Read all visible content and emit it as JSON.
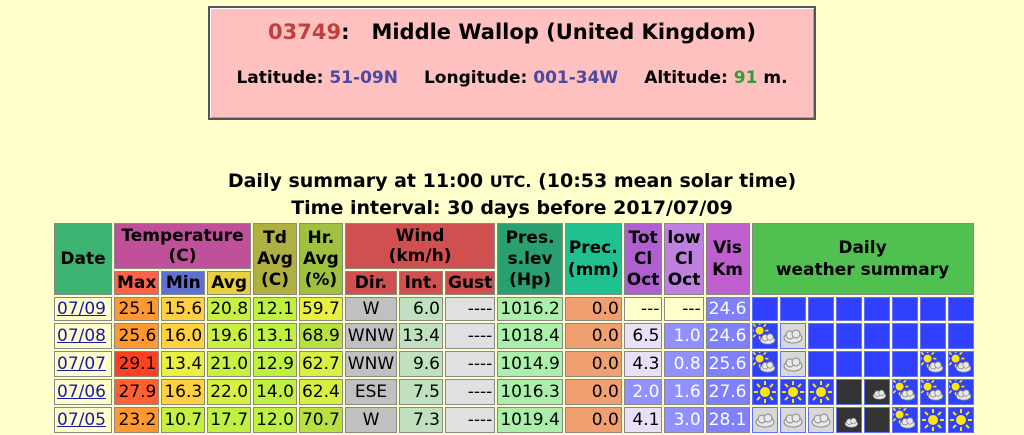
{
  "station": {
    "code": "03749",
    "name": "Middle Wallop (United Kingdom)",
    "lat_label": "Latitude:",
    "lat": "51-09N",
    "lon_label": "Longitude:",
    "lon": "001-34W",
    "alt_label": "Altitude:",
    "alt": "91",
    "alt_unit": "m."
  },
  "summary": {
    "line1_a": "Daily summary at 11:00",
    "line1_utc": "UTC.",
    "line1_b": "(10:53 mean solar time)",
    "line2": "Time interval: 30 days before 2017/07/09"
  },
  "headers": {
    "date": "Date",
    "temperature": "Temperature",
    "temperature_unit": "(C)",
    "max": "Max",
    "min": "Min",
    "avg": "Avg",
    "td_avg": "Td",
    "td_avg2": "Avg",
    "td_unit": "(C)",
    "hr": "Hr.",
    "hr2": "Avg",
    "hr_unit": "(%)",
    "wind": "Wind",
    "wind_unit": "(km/h)",
    "dir": "Dir.",
    "int": "Int.",
    "gust": "Gust",
    "pres": "Pres.",
    "pres2": "s.lev",
    "pres_unit": "(Hp)",
    "prec": "Prec.",
    "prec_unit": "(mm)",
    "totcl": "Tot",
    "totcl2": "Cl",
    "totcl3": "Oct",
    "lowcl": "low",
    "lowcl2": "Cl",
    "lowcl3": "Oct",
    "vis": "Vis",
    "vis2": "Km",
    "daily": "Daily",
    "daily2": "weather summary"
  },
  "rows": [
    {
      "date": "07/09",
      "max": "25.1",
      "min": "15.6",
      "avg": "20.8",
      "td": "12.1",
      "hr": "59.7",
      "dir": "W",
      "int": "6.0",
      "gust": "----",
      "pres": "1016.2",
      "prec": "0.0",
      "totcl": "---",
      "lowcl": "---",
      "vis": "24.6",
      "colors": {
        "max": "#ff9830",
        "min": "#ffd040",
        "avg": "#c8f040",
        "td": "#c0f040",
        "hr": "#e8f040",
        "totcl": "#ffffcc",
        "lowcl": "#ffffcc"
      },
      "icons": [
        "blank",
        "blank",
        "blank",
        "blank",
        "blank",
        "blank",
        "blank",
        "blank"
      ]
    },
    {
      "date": "07/08",
      "max": "25.6",
      "min": "16.0",
      "avg": "19.6",
      "td": "13.1",
      "hr": "68.9",
      "dir": "WNW",
      "int": "13.4",
      "gust": "----",
      "pres": "1018.4",
      "prec": "0.0",
      "totcl": "6.5",
      "lowcl": "1.0",
      "vis": "24.6",
      "colors": {
        "max": "#ff9830",
        "min": "#ffd040",
        "avg": "#c8f040",
        "td": "#c0f040",
        "hr": "#b8e040",
        "totcl": "#e8e0f8",
        "lowcl": "#9090ff"
      },
      "icons": [
        "sun-cloud",
        "cloud",
        "blank",
        "blank",
        "blank",
        "blank",
        "blank",
        "blank"
      ]
    },
    {
      "date": "07/07",
      "max": "29.1",
      "min": "13.4",
      "avg": "21.0",
      "td": "12.9",
      "hr": "62.7",
      "dir": "WNW",
      "int": "9.6",
      "gust": "----",
      "pres": "1014.9",
      "prec": "0.0",
      "totcl": "4.3",
      "lowcl": "0.8",
      "vis": "25.6",
      "colors": {
        "max": "#ff4020",
        "min": "#e8f040",
        "avg": "#c8f040",
        "td": "#c0f040",
        "hr": "#d8f040",
        "totcl": "#e8e0f8",
        "lowcl": "#9090ff"
      },
      "icons": [
        "sun-cloud",
        "cloud",
        "blank",
        "blank",
        "blank",
        "blank",
        "sun-cloud",
        "sun-cloud"
      ]
    },
    {
      "date": "07/06",
      "max": "27.9",
      "min": "16.3",
      "avg": "22.0",
      "td": "14.0",
      "hr": "62.4",
      "dir": "ESE",
      "int": "7.5",
      "gust": "----",
      "pres": "1016.3",
      "prec": "0.0",
      "totcl": "2.0",
      "lowcl": "1.6",
      "vis": "27.6",
      "colors": {
        "max": "#ff6030",
        "min": "#ffd040",
        "avg": "#d8f040",
        "td": "#c0f040",
        "hr": "#d8f040",
        "totcl": "#9090ff",
        "lowcl": "#9090ff"
      },
      "icons": [
        "sun",
        "sun",
        "sun",
        "moon",
        "moon-cloud",
        "sun-cloud",
        "sun-cloud",
        "sun-cloud"
      ]
    },
    {
      "date": "07/05",
      "max": "23.2",
      "min": "10.7",
      "avg": "17.7",
      "td": "12.0",
      "hr": "70.7",
      "dir": "W",
      "int": "7.3",
      "gust": "----",
      "pres": "1019.4",
      "prec": "0.0",
      "totcl": "4.1",
      "lowcl": "3.0",
      "vis": "28.1",
      "colors": {
        "max": "#ff9830",
        "min": "#c8f040",
        "avg": "#c0f040",
        "td": "#c0f040",
        "hr": "#b8e040",
        "totcl": "#e8e0f8",
        "lowcl": "#9090ff"
      },
      "icons": [
        "cloud",
        "cloud",
        "cloud",
        "moon-cloud",
        "moon",
        "sun-cloud",
        "sun",
        "sun"
      ]
    }
  ]
}
